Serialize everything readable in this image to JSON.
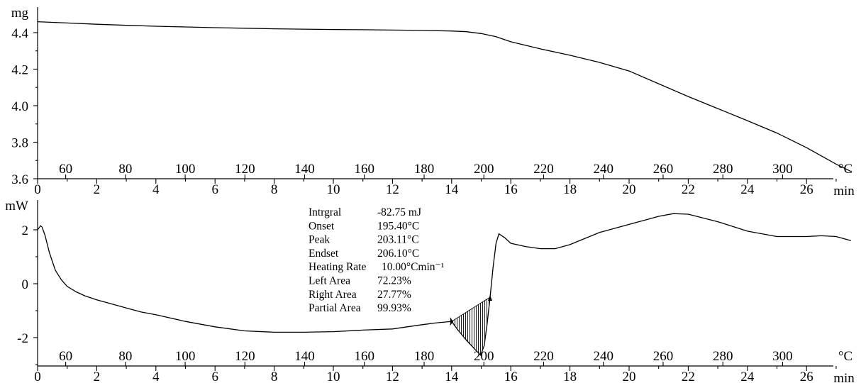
{
  "chart_data": [
    {
      "type": "line",
      "title": "",
      "ylabel": "mg",
      "xlabel": "min",
      "x_unit": "min",
      "secondary_x_unit": "°C",
      "xlim": [
        0,
        27.7
      ],
      "ylim": [
        3.6,
        4.5
      ],
      "y_ticks": [
        "3.6",
        "3.8",
        "4.0",
        "4.2",
        "4.4"
      ],
      "x_ticks": [
        "0",
        "2",
        "4",
        "6",
        "8",
        "10",
        "12",
        "14",
        "16",
        "18",
        "20",
        "22",
        "24",
        "26"
      ],
      "temp_ticks": [
        "60",
        "80",
        "100",
        "120",
        "140",
        "160",
        "180",
        "200",
        "220",
        "240",
        "260",
        "280",
        "300"
      ],
      "grid": false,
      "series": [
        {
          "x": [
            0,
            1,
            2,
            3,
            4,
            5,
            6,
            7,
            8,
            9,
            10,
            11,
            12,
            13,
            14,
            14.5,
            15,
            15.5,
            16,
            17,
            18,
            19,
            20,
            21,
            22,
            23,
            24,
            25,
            26,
            27,
            27.5
          ],
          "values": [
            4.46,
            4.453,
            4.446,
            4.44,
            4.435,
            4.431,
            4.427,
            4.424,
            4.421,
            4.419,
            4.417,
            4.416,
            4.414,
            4.412,
            4.409,
            4.405,
            4.395,
            4.378,
            4.35,
            4.311,
            4.276,
            4.237,
            4.19,
            4.12,
            4.05,
            3.984,
            3.918,
            3.85,
            3.77,
            3.68,
            3.64
          ]
        }
      ]
    },
    {
      "type": "line",
      "title": "",
      "ylabel": "mW",
      "xlabel": "min",
      "x_unit": "min",
      "secondary_x_unit": "°C",
      "xlim": [
        0,
        27.7
      ],
      "ylim": [
        -3.2,
        2.9
      ],
      "y_ticks": [
        "-2",
        "0",
        "2"
      ],
      "x_ticks": [
        "0",
        "2",
        "4",
        "6",
        "8",
        "10",
        "12",
        "14",
        "16",
        "18",
        "20",
        "22",
        "24",
        "26"
      ],
      "temp_ticks": [
        "60",
        "80",
        "100",
        "120",
        "140",
        "160",
        "180",
        "200",
        "220",
        "240",
        "260",
        "280",
        "300"
      ],
      "grid": false,
      "series": [
        {
          "x": [
            0,
            0.1,
            0.15,
            0.25,
            0.4,
            0.6,
            0.8,
            1,
            1.3,
            1.6,
            2,
            2.5,
            3,
            3.5,
            4,
            5,
            6,
            7,
            8,
            9,
            10,
            11,
            12,
            13,
            13.5,
            14,
            14.2,
            14.5,
            14.8,
            14.98,
            15.1,
            15.2,
            15.3,
            15.4,
            15.5,
            15.6,
            15.8,
            16,
            16.5,
            17,
            17.5,
            18,
            19,
            20,
            20.5,
            21,
            21.5,
            22,
            23,
            24,
            25,
            26,
            26.5,
            27,
            27.5
          ],
          "values": [
            2.0,
            2.15,
            2.1,
            1.8,
            1.15,
            0.5,
            0.15,
            -0.1,
            -0.3,
            -0.45,
            -0.6,
            -0.75,
            -0.9,
            -1.05,
            -1.15,
            -1.4,
            -1.6,
            -1.75,
            -1.8,
            -1.8,
            -1.78,
            -1.72,
            -1.68,
            -1.52,
            -1.45,
            -1.4,
            -1.7,
            -2.1,
            -2.45,
            -2.65,
            -2.3,
            -1.5,
            -0.5,
            0.6,
            1.5,
            1.85,
            1.7,
            1.5,
            1.38,
            1.3,
            1.3,
            1.45,
            1.9,
            2.2,
            2.35,
            2.5,
            2.6,
            2.58,
            2.3,
            1.95,
            1.75,
            1.75,
            1.78,
            1.75,
            1.6
          ]
        }
      ],
      "integrated_region": {
        "x_start": 14.0,
        "x_end": 15.3
      },
      "annotations": [
        {
          "label": "Intrgral",
          "value": "-82.75 mJ"
        },
        {
          "label": "Onset",
          "value": "195.40°C"
        },
        {
          "label": "Peak",
          "value": "203.11°C"
        },
        {
          "label": "Endset",
          "value": "206.10°C"
        },
        {
          "label": "Heating Rate",
          "value": "10.00°Cmin⁻¹"
        },
        {
          "label": "Left Area",
          "value": "72.23%"
        },
        {
          "label": "Right Area",
          "value": "27.77%"
        },
        {
          "label": "Partial Area",
          "value": "99.93%"
        }
      ]
    }
  ]
}
